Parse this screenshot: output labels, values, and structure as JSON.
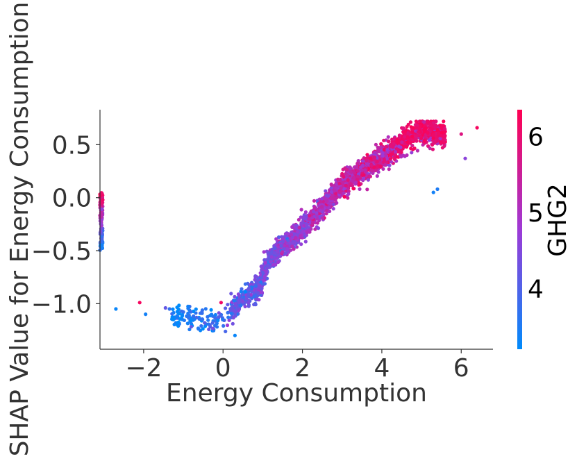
{
  "chart_data": {
    "type": "scatter",
    "title": "",
    "xlabel": "Energy Consumption",
    "ylabel": "SHAP Value for Energy Consumption",
    "xlim": [
      -3.1,
      6.8
    ],
    "ylim": [
      -1.43,
      0.83
    ],
    "x_ticks": [
      -2,
      0,
      2,
      4,
      6
    ],
    "y_ticks": [
      -1.0,
      -0.5,
      0.0,
      0.5
    ],
    "x_tick_labels": [
      "−2",
      "0",
      "2",
      "4",
      "6"
    ],
    "y_tick_labels": [
      "−1.0",
      "−0.5",
      "0.0",
      "0.5"
    ],
    "colorbar": {
      "label": "GHG2",
      "range": [
        3.2,
        6.35
      ],
      "ticks": [
        4,
        5,
        6
      ],
      "tick_labels": [
        "4",
        "5",
        "6"
      ],
      "color_low": "#008bfb",
      "color_mid": "#9e3ad6",
      "color_high": "#ff0052"
    },
    "trend": {
      "description": "SHAP value rises with Energy Consumption; colour by GHG2",
      "x": [
        -3.0,
        -1.5,
        -0.8,
        0.0,
        0.5,
        0.9,
        1.2,
        2.0,
        2.5,
        3.0,
        3.5,
        4.0,
        4.5,
        5.0,
        5.5,
        6.0
      ],
      "y": [
        -1.05,
        -1.08,
        -1.15,
        -1.15,
        -0.95,
        -0.85,
        -0.55,
        -0.3,
        -0.1,
        0.12,
        0.25,
        0.38,
        0.5,
        0.6,
        0.55,
        0.52
      ]
    },
    "nan_strip": {
      "x": -3.1,
      "y_range": [
        -0.5,
        0.05
      ]
    },
    "outliers": [
      {
        "x": -2.7,
        "y": -1.05,
        "ghg2": 3.3
      },
      {
        "x": -2.1,
        "y": -0.99,
        "ghg2": 6.2
      },
      {
        "x": -1.95,
        "y": -1.1,
        "ghg2": 3.4
      },
      {
        "x": -1.45,
        "y": -1.04,
        "ghg2": 4.2
      },
      {
        "x": -1.35,
        "y": -1.05,
        "ghg2": 3.7
      },
      {
        "x": -0.05,
        "y": -0.99,
        "ghg2": 6.1
      },
      {
        "x": 0.3,
        "y": -1.3,
        "ghg2": 3.3
      },
      {
        "x": 5.4,
        "y": 0.08,
        "ghg2": 3.5
      },
      {
        "x": 5.3,
        "y": 0.05,
        "ghg2": 3.4
      },
      {
        "x": 6.1,
        "y": 0.37,
        "ghg2": 4.6
      },
      {
        "x": 6.4,
        "y": 0.66,
        "ghg2": 6.2
      },
      {
        "x": 6.0,
        "y": 0.6,
        "ghg2": 5.8
      }
    ]
  }
}
